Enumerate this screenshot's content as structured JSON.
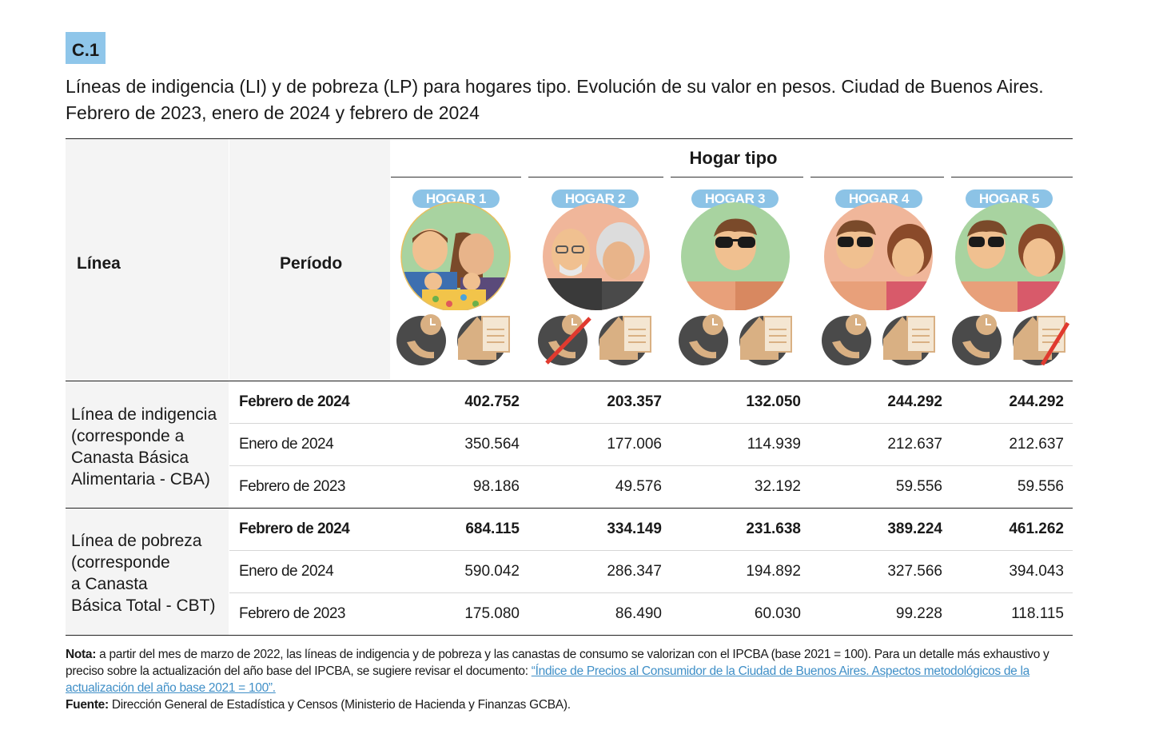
{
  "tag": "C.1",
  "title": {
    "line1": "Líneas de indigencia (LI) y de pobreza (LP) para hogares tipo. Evolución de su valor en pesos. Ciudad de Buenos Aires.",
    "line2": "Febrero de 2023, enero de 2024 y febrero de 2024"
  },
  "header": {
    "linea": "Línea",
    "periodo": "Período",
    "hogar_tipo": "Hogar tipo",
    "hogares": [
      "HOGAR 1",
      "HOGAR 2",
      "HOGAR 3",
      "HOGAR 4",
      "HOGAR 5"
    ]
  },
  "groups": [
    {
      "label_lines": [
        "Línea de indigencia",
        "(corresponde a",
        "Canasta Básica",
        "Alimentaria - CBA)"
      ],
      "rows": [
        {
          "period": "Febrero de 2024",
          "values": [
            "402.752",
            "203.357",
            "132.050",
            "244.292",
            "244.292"
          ]
        },
        {
          "period": "Enero de 2024",
          "values": [
            "350.564",
            "177.006",
            "114.939",
            "212.637",
            "212.637"
          ]
        },
        {
          "period": "Febrero de 2023",
          "values": [
            "98.186",
            "49.576",
            "32.192",
            "59.556",
            "59.556"
          ]
        }
      ]
    },
    {
      "label_lines": [
        "Línea de pobreza",
        "(corresponde",
        "a Canasta",
        "Básica Total - CBT)"
      ],
      "rows": [
        {
          "period": "Febrero de 2024",
          "values": [
            "684.115",
            "334.149",
            "231.638",
            "389.224",
            "461.262"
          ]
        },
        {
          "period": "Enero de 2024",
          "values": [
            "590.042",
            "286.347",
            "194.892",
            "327.566",
            "394.043"
          ]
        },
        {
          "period": "Febrero de 2023",
          "values": [
            "175.080",
            "86.490",
            "60.030",
            "99.228",
            "118.115"
          ]
        }
      ]
    }
  ],
  "notes": {
    "nota_label": "Nota:",
    "nota_text": "a partir del mes de marzo de 2022, las líneas de indigencia y de pobreza y las canastas de consumo se valorizan con el IPCBA (base 2021 = 100). Para un detalle más exhaustivo y preciso sobre la actualización del año base del IPCBA, se sugiere revisar el documento:",
    "nota_link": "“Índice de Precios al Consumidor de la Ciudad de Buenos Aires. Aspectos metodológicos de la actualización del año base 2021 = 100”.",
    "fuente_label": "Fuente:",
    "fuente_text": "Dirección General de Estadística y Censos (Ministerio de Hacienda y Finanzas GCBA)."
  },
  "colors": {
    "tag_bg": "#8fc6ea",
    "pill_bg": "#8cc3e6",
    "link": "#3f8fc7",
    "avatar_bg_green": "#a8d3a0",
    "avatar_bg_peach": "#f0b69a",
    "icon_dark": "#4a4a4a",
    "icon_tan": "#d9b083",
    "strike_red": "#e03a2f"
  }
}
